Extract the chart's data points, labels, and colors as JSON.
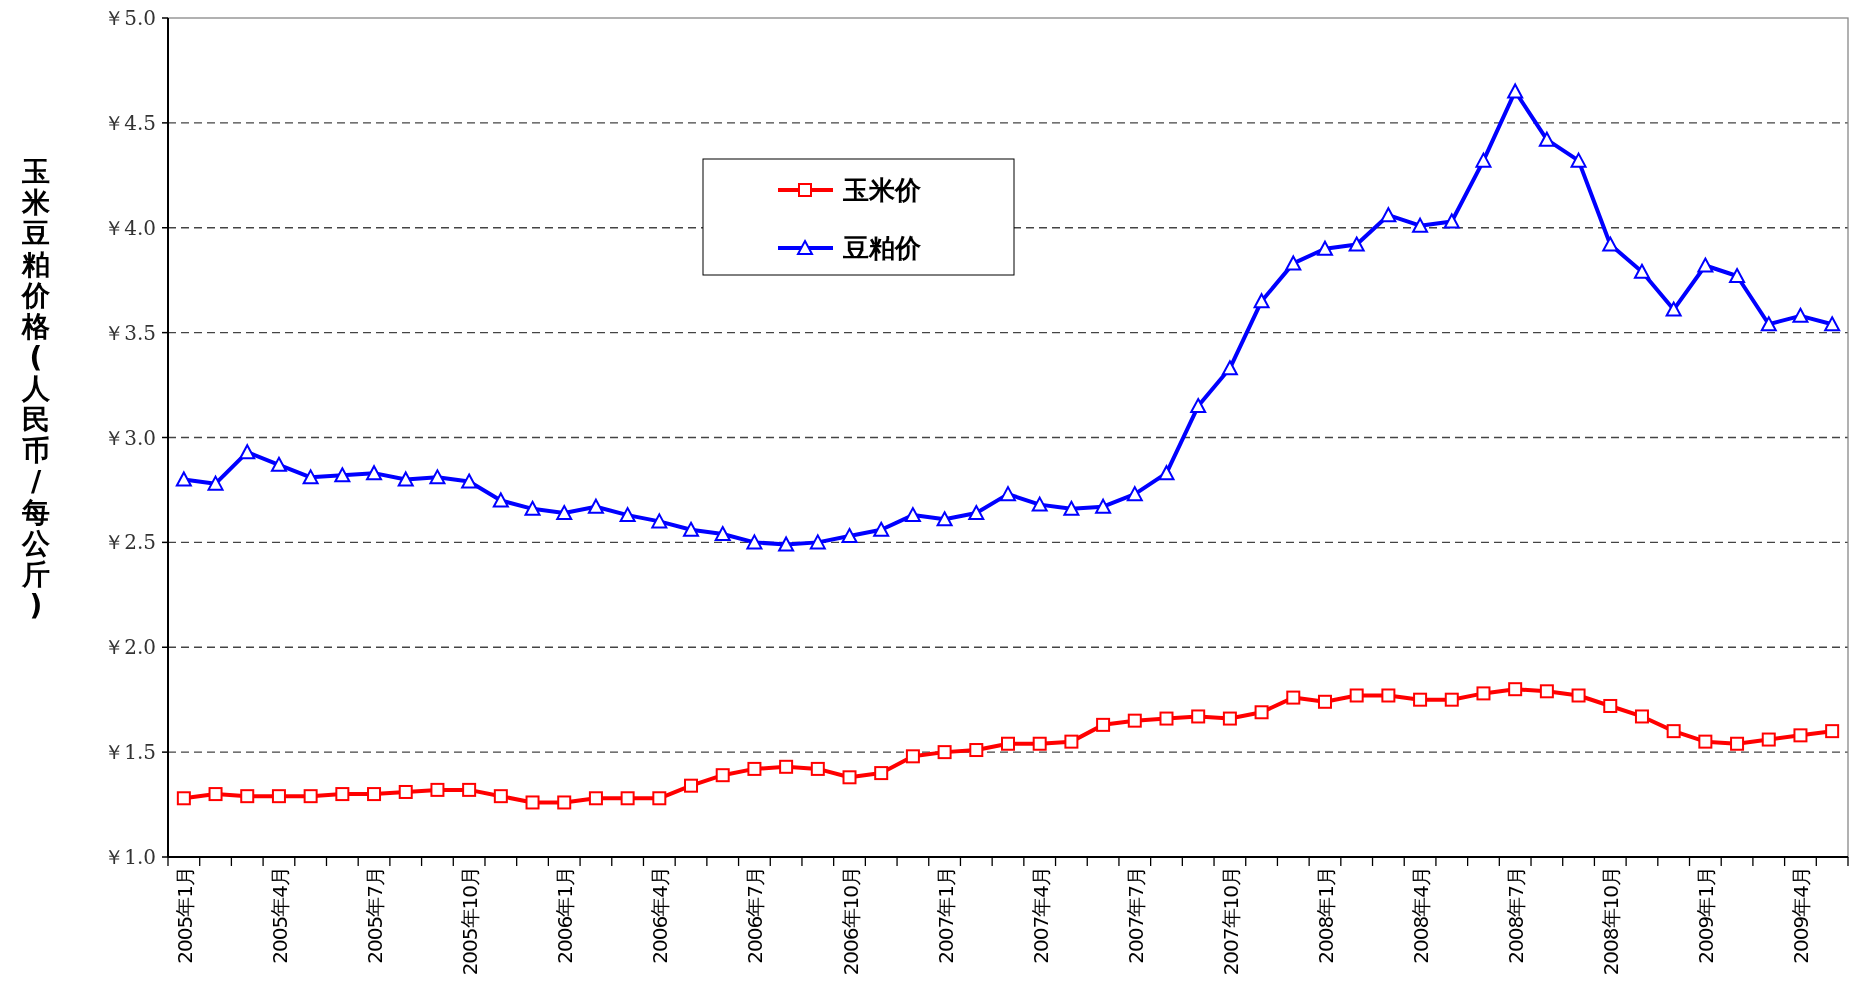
{
  "chart_data": {
    "type": "line",
    "ylabel": "玉米豆粕价格(人民币/每公斤)",
    "categories": [
      "2005年1月",
      null,
      null,
      "2005年4月",
      null,
      null,
      "2005年7月",
      null,
      null,
      "2005年10月",
      null,
      null,
      "2006年1月",
      null,
      null,
      "2006年4月",
      null,
      null,
      "2006年7月",
      null,
      null,
      "2006年10月",
      null,
      null,
      "2007年1月",
      null,
      null,
      "2007年4月",
      null,
      null,
      "2007年7月",
      null,
      null,
      "2007年10月",
      null,
      null,
      "2008年1月",
      null,
      null,
      "2008年4月",
      null,
      null,
      "2008年7月",
      null,
      null,
      "2008年10月",
      null,
      null,
      "2009年1月",
      null,
      null,
      "2009年4月",
      null
    ],
    "series": [
      {
        "name": "玉米价",
        "color": "#ff0000",
        "marker": "square",
        "values": [
          1.28,
          1.3,
          1.29,
          1.29,
          1.29,
          1.3,
          1.3,
          1.31,
          1.32,
          1.32,
          1.29,
          1.26,
          1.26,
          1.28,
          1.28,
          1.28,
          1.34,
          1.39,
          1.42,
          1.43,
          1.42,
          1.38,
          1.4,
          1.48,
          1.5,
          1.51,
          1.54,
          1.54,
          1.55,
          1.63,
          1.65,
          1.66,
          1.67,
          1.66,
          1.69,
          1.76,
          1.74,
          1.77,
          1.77,
          1.75,
          1.75,
          1.78,
          1.8,
          1.79,
          1.77,
          1.72,
          1.67,
          1.6,
          1.55,
          1.54,
          1.56,
          1.58,
          1.6
        ]
      },
      {
        "name": "豆粕价",
        "color": "#0000ff",
        "marker": "triangle",
        "values": [
          2.8,
          2.78,
          2.93,
          2.87,
          2.81,
          2.82,
          2.83,
          2.8,
          2.81,
          2.79,
          2.7,
          2.66,
          2.64,
          2.67,
          2.63,
          2.6,
          2.56,
          2.54,
          2.5,
          2.49,
          2.5,
          2.53,
          2.56,
          2.63,
          2.61,
          2.64,
          2.73,
          2.68,
          2.66,
          2.67,
          2.73,
          2.83,
          3.15,
          3.33,
          3.65,
          3.83,
          3.9,
          3.92,
          4.06,
          4.01,
          4.03,
          4.32,
          4.65,
          4.42,
          4.32,
          3.92,
          3.79,
          3.61,
          3.82,
          3.77,
          3.54,
          3.58,
          3.54
        ]
      }
    ],
    "ylim": [
      1.0,
      5.0
    ],
    "yticks": [
      {
        "value": 1.0,
        "label": "￥1.0"
      },
      {
        "value": 1.5,
        "label": "￥1.5"
      },
      {
        "value": 2.0,
        "label": "￥2.0"
      },
      {
        "value": 2.5,
        "label": "￥2.5"
      },
      {
        "value": 3.0,
        "label": "￥3.0"
      },
      {
        "value": 3.5,
        "label": "￥3.5"
      },
      {
        "value": 4.0,
        "label": "￥4.0"
      },
      {
        "value": 4.5,
        "label": "￥4.5"
      },
      {
        "value": 5.0,
        "label": "￥5.0"
      }
    ],
    "grid": "y",
    "legend": "top",
    "line_style": "solid"
  }
}
